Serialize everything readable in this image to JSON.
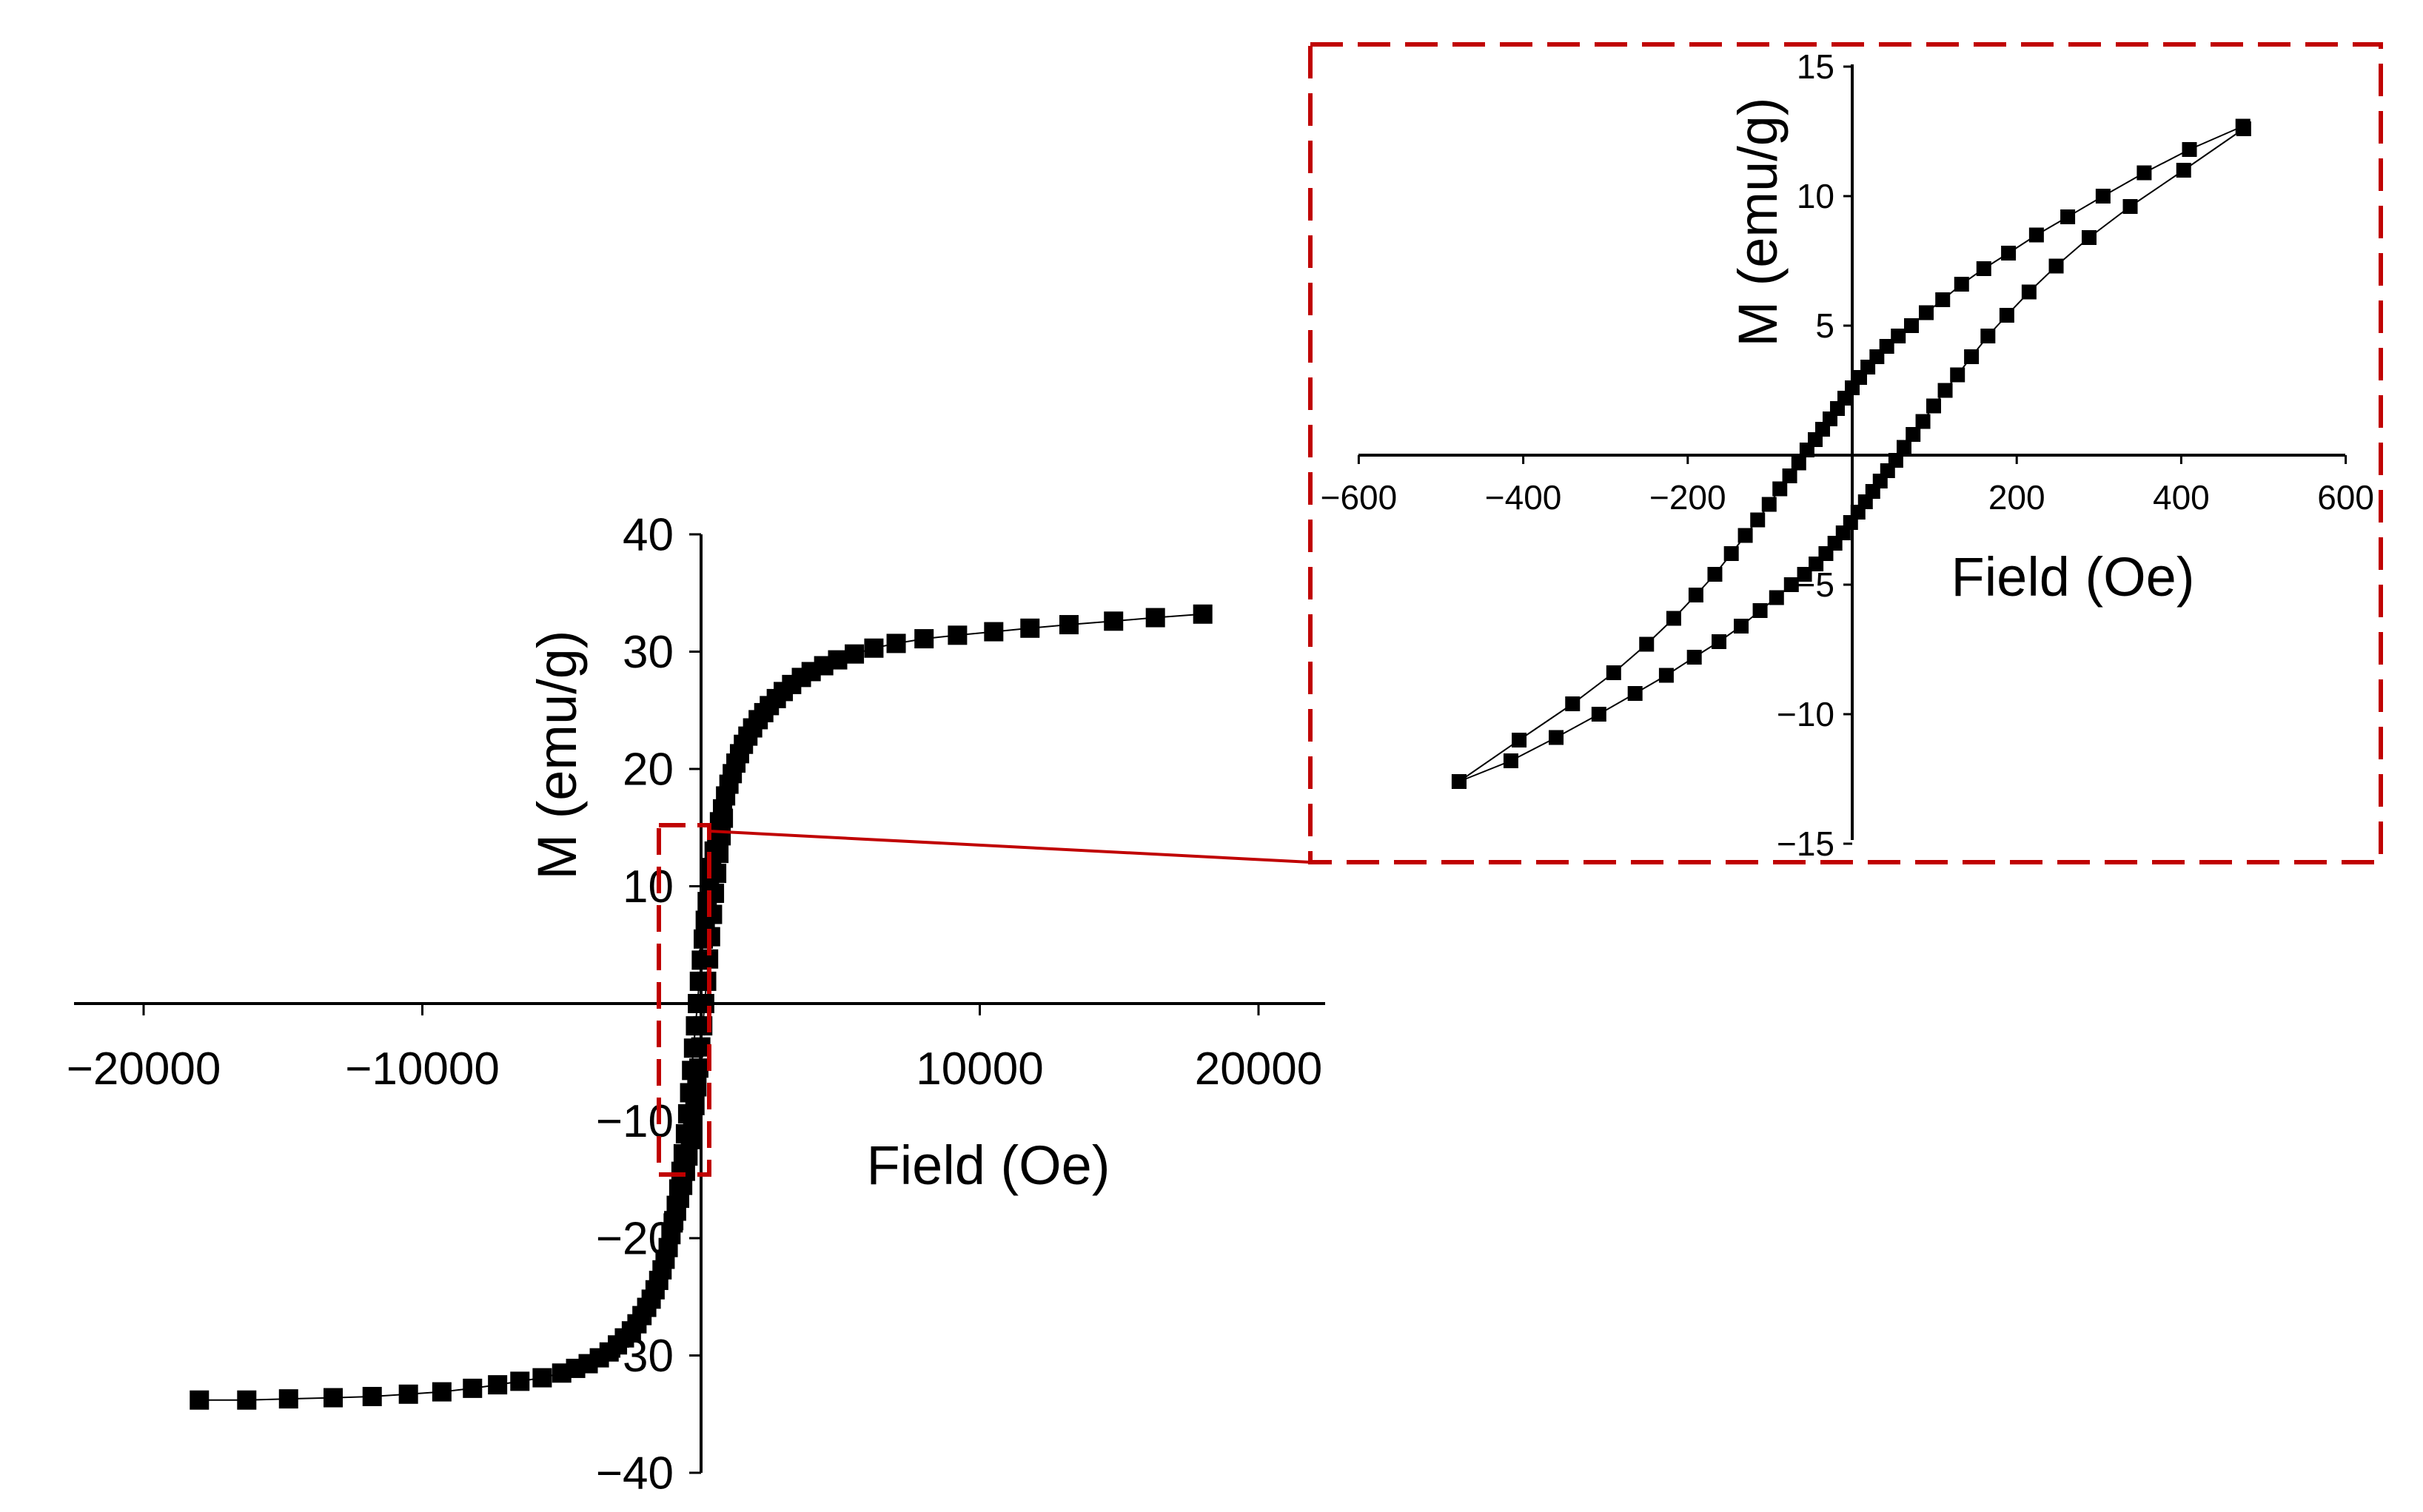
{
  "colors": {
    "ink": "#000000",
    "accent": "#c00000",
    "background": "#ffffff"
  },
  "chart_data": [
    {
      "id": "main",
      "type": "scatter",
      "title": "",
      "xlabel": "Field (Oe)",
      "ylabel": "M (emu/g)",
      "xlim": [
        -22500,
        22500
      ],
      "ylim": [
        -40,
        40
      ],
      "xticks": [
        -20000,
        -10000,
        0,
        10000,
        20000
      ],
      "xtick_labels": [
        "−20000",
        "−10000",
        "",
        "10000",
        "20000"
      ],
      "yticks": [
        -40,
        -30,
        -20,
        -10,
        0,
        10,
        20,
        30,
        40
      ],
      "ytick_labels": [
        "−40",
        "−30",
        "−20",
        "−10",
        "",
        "10",
        "20",
        "30",
        "40"
      ],
      "marker": "square",
      "line": "thin-solid",
      "series": [
        {
          "name": "branch-descending",
          "x": [
            18000,
            16300,
            14800,
            13200,
            11800,
            10500,
            9200,
            8000,
            7000,
            6200,
            5500,
            4900,
            4400,
            3950,
            3600,
            3250,
            2950,
            2700,
            2450,
            2250,
            2050,
            1850,
            1680,
            1520,
            1380,
            1250,
            1120,
            1000,
            880,
            770,
            660,
            560,
            470,
            380,
            300,
            220,
            150,
            80,
            10,
            -60,
            -130,
            -200,
            -270,
            -340,
            -410,
            -480,
            -560,
            -640,
            -720,
            -800,
            -890,
            -980,
            -1080,
            -1180,
            -1290,
            -1400,
            -1520,
            -1650,
            -1790,
            -1950,
            -2120,
            -2300,
            -2500,
            -2750,
            -3000,
            -3300,
            -3650,
            -4050,
            -4500,
            -5000,
            -5700,
            -6500,
            -7300,
            -8200,
            -9300,
            -10500,
            -11800,
            -13200,
            -14800,
            -16300,
            -18000
          ],
          "y": [
            33.2,
            32.9,
            32.6,
            32.3,
            32.0,
            31.7,
            31.4,
            31.1,
            30.7,
            30.3,
            29.8,
            29.3,
            28.8,
            28.3,
            27.8,
            27.2,
            26.6,
            26.0,
            25.4,
            24.8,
            24.2,
            23.5,
            22.8,
            22.1,
            21.3,
            20.5,
            19.6,
            18.7,
            17.7,
            16.6,
            15.5,
            14.3,
            13.0,
            11.6,
            10.2,
            8.7,
            7.1,
            5.5,
            3.7,
            1.9,
            0.0,
            -1.9,
            -3.8,
            -5.7,
            -7.6,
            -9.4,
            -11.1,
            -12.8,
            -14.3,
            -15.8,
            -17.2,
            -18.5,
            -19.7,
            -20.8,
            -21.8,
            -22.7,
            -23.6,
            -24.4,
            -25.2,
            -25.9,
            -26.6,
            -27.3,
            -27.9,
            -28.5,
            -29.1,
            -29.7,
            -30.2,
            -30.7,
            -31.1,
            -31.5,
            -31.9,
            -32.2,
            -32.5,
            -32.8,
            -33.1,
            -33.3,
            -33.5,
            -33.6,
            -33.7,
            -33.8,
            -33.8
          ]
        },
        {
          "name": "branch-ascending",
          "x": [
            -1000,
            -880,
            -770,
            -660,
            -560,
            -470,
            -380,
            -300,
            -220,
            -150,
            -80,
            -10,
            60,
            130,
            200,
            270,
            340,
            410,
            480,
            560,
            640,
            720,
            800
          ],
          "y": [
            -18.7,
            -17.7,
            -16.6,
            -15.5,
            -14.3,
            -13.0,
            -11.6,
            -10.2,
            -8.7,
            -7.1,
            -5.5,
            -3.7,
            -1.9,
            0.0,
            1.9,
            3.8,
            5.7,
            7.6,
            9.4,
            11.1,
            12.8,
            14.3,
            15.8
          ]
        }
      ]
    },
    {
      "id": "inset",
      "type": "scatter",
      "title": "",
      "xlabel": "Field (Oe)",
      "ylabel": "M (emu/g)",
      "xlim": [
        -600,
        600
      ],
      "ylim": [
        -15,
        15
      ],
      "xticks": [
        -600,
        -400,
        -200,
        0,
        200,
        400,
        600
      ],
      "xtick_labels": [
        "−600",
        "−400",
        "−200",
        "",
        "200",
        "400",
        "600"
      ],
      "yticks": [
        -15,
        -10,
        -5,
        0,
        5,
        10,
        15
      ],
      "ytick_labels": [
        "−15",
        "−10",
        "−5",
        "",
        "5",
        "10",
        "15"
      ],
      "marker": "square",
      "line": "thin-solid",
      "series": [
        {
          "name": "upper-branch",
          "x": [
            475,
            410,
            355,
            305,
            262,
            224,
            190,
            160,
            133,
            110,
            90,
            72,
            56,
            42,
            30,
            19,
            9,
            0,
            -9,
            -18,
            -27,
            -36,
            -45,
            -55,
            -65,
            -76,
            -88,
            -101,
            -115,
            -130,
            -147,
            -167,
            -190,
            -217,
            -250,
            -290,
            -340,
            -405,
            -478
          ],
          "y": [
            12.7,
            11.8,
            10.9,
            10.0,
            9.2,
            8.5,
            7.8,
            7.2,
            6.6,
            6.0,
            5.5,
            5.0,
            4.6,
            4.2,
            3.8,
            3.4,
            3.0,
            2.6,
            2.2,
            1.8,
            1.4,
            1.0,
            0.6,
            0.2,
            -0.3,
            -0.8,
            -1.3,
            -1.9,
            -2.5,
            -3.1,
            -3.8,
            -4.6,
            -5.4,
            -6.3,
            -7.3,
            -8.4,
            -9.6,
            -11.0,
            -12.6
          ]
        },
        {
          "name": "lower-branch",
          "x": [
            -478,
            -415,
            -360,
            -308,
            -264,
            -226,
            -192,
            -162,
            -135,
            -112,
            -92,
            -74,
            -58,
            -44,
            -32,
            -21,
            -11,
            -2,
            7,
            16,
            25,
            34,
            43,
            53,
            63,
            74,
            86,
            99,
            113,
            128,
            145,
            165,
            188,
            215,
            248,
            288,
            338,
            403,
            476
          ],
          "y": [
            -12.6,
            -11.8,
            -10.9,
            -10.0,
            -9.2,
            -8.5,
            -7.8,
            -7.2,
            -6.6,
            -6.0,
            -5.5,
            -5.0,
            -4.6,
            -4.2,
            -3.8,
            -3.4,
            -3.0,
            -2.6,
            -2.2,
            -1.8,
            -1.4,
            -1.0,
            -0.6,
            -0.2,
            0.3,
            0.8,
            1.3,
            1.9,
            2.5,
            3.1,
            3.8,
            4.6,
            5.4,
            6.3,
            7.3,
            8.4,
            9.6,
            11.0,
            12.6
          ]
        }
      ]
    }
  ]
}
